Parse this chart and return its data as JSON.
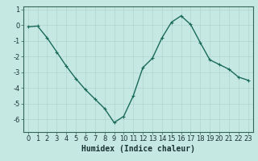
{
  "y": [
    -0.1,
    -0.05,
    -0.8,
    -1.7,
    -2.6,
    -3.4,
    -4.1,
    -4.7,
    -5.3,
    -6.2,
    -5.8,
    -4.5,
    -2.7,
    -2.1,
    -0.8,
    0.2,
    0.6,
    0.05,
    -1.1,
    -2.2,
    -2.5,
    -2.8,
    -3.3,
    -3.5
  ],
  "line_color": "#1a6b5a",
  "marker": "+",
  "marker_size": 3,
  "marker_linewidth": 0.8,
  "bg_color": "#c6e8e2",
  "grid_color": "#b0d4ce",
  "grid_linewidth": 0.5,
  "xlabel": "Humidex (Indice chaleur)",
  "ylim": [
    -6.8,
    1.2
  ],
  "xlim": [
    -0.5,
    23.5
  ],
  "yticks": [
    1,
    0,
    -1,
    -2,
    -3,
    -4,
    -5,
    -6
  ],
  "xticks": [
    0,
    1,
    2,
    3,
    4,
    5,
    6,
    7,
    8,
    9,
    10,
    11,
    12,
    13,
    14,
    15,
    16,
    17,
    18,
    19,
    20,
    21,
    22,
    23
  ],
  "xlabel_fontsize": 7,
  "tick_fontsize": 6,
  "line_width": 1.0,
  "spine_color": "#336655",
  "tick_color": "#336655",
  "label_color": "#1a3333"
}
